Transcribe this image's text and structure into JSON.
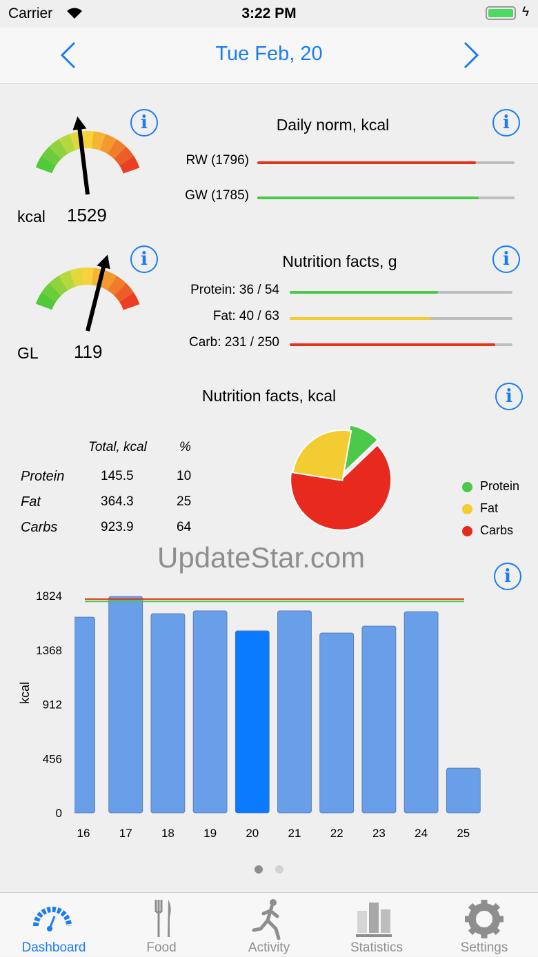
{
  "status_bar": {
    "carrier": "Carrier",
    "time": "3:22 PM"
  },
  "nav": {
    "title": "Tue  Feb, 20",
    "prev": "back-chevron",
    "next": "forward-chevron"
  },
  "calorie_gauge": {
    "unit": "kcal",
    "value": "1529",
    "level": 0.45
  },
  "gl_gauge": {
    "unit": "GL",
    "value": "119",
    "level": 0.6
  },
  "daily_norm": {
    "title": "Daily norm, kcal",
    "rows": [
      {
        "label": "RW (1796)",
        "fraction": 0.85,
        "color": "#e8321e"
      },
      {
        "label": "GW (1785)",
        "fraction": 0.86,
        "color": "#4cc84a"
      }
    ]
  },
  "nutrition_g": {
    "title": "Nutrition facts, g",
    "rows": [
      {
        "label": "Protein: 36 / 54",
        "fraction": 0.667,
        "color": "#4cc84a"
      },
      {
        "label": "Fat: 40 / 63",
        "fraction": 0.635,
        "color": "#f2cc30"
      },
      {
        "label": "Carb: 231 / 250",
        "fraction": 0.924,
        "color": "#e8321e"
      }
    ]
  },
  "nutrition_kcal": {
    "title": "Nutrition facts, kcal",
    "col_total": "Total, kcal",
    "col_pct": "%",
    "rows": [
      {
        "name": "Protein",
        "total": "145.5",
        "pct": "10"
      },
      {
        "name": "Fat",
        "total": "364.3",
        "pct": "25"
      },
      {
        "name": "Carbs",
        "total": "923.9",
        "pct": "64"
      }
    ],
    "legend": [
      {
        "name": "Protein",
        "color": "#4cc84a"
      },
      {
        "name": "Fat",
        "color": "#f2cc30"
      },
      {
        "name": "Carbs",
        "color": "#e8291e"
      }
    ],
    "pie": [
      10,
      25,
      64
    ]
  },
  "watermark": "UpdateStar.com",
  "chart_data": {
    "type": "bar",
    "ylabel": "kcal",
    "yticks": [
      "0",
      "456",
      "912",
      "1368",
      "1824"
    ],
    "ylim": [
      0,
      1824
    ],
    "categories": [
      "16",
      "17",
      "18",
      "19",
      "20",
      "21",
      "22",
      "23",
      "24",
      "25"
    ],
    "values": [
      1644,
      1818,
      1673,
      1697,
      1529,
      1697,
      1511,
      1569,
      1691,
      376
    ],
    "selected": "20",
    "norm_lines": [
      {
        "value": 1796,
        "color": "#e8321e"
      },
      {
        "value": 1785,
        "color": "#4cc84a"
      }
    ],
    "bar_color": "#699ee8",
    "selected_color": "#0a7aff"
  },
  "pager": {
    "pages": 2,
    "current": 1
  },
  "tabs": [
    {
      "label": "Dashboard",
      "active": true
    },
    {
      "label": "Food"
    },
    {
      "label": "Activity"
    },
    {
      "label": "Statistics"
    },
    {
      "label": "Settings"
    }
  ],
  "colors": {
    "accent": "#1a7cf5"
  }
}
